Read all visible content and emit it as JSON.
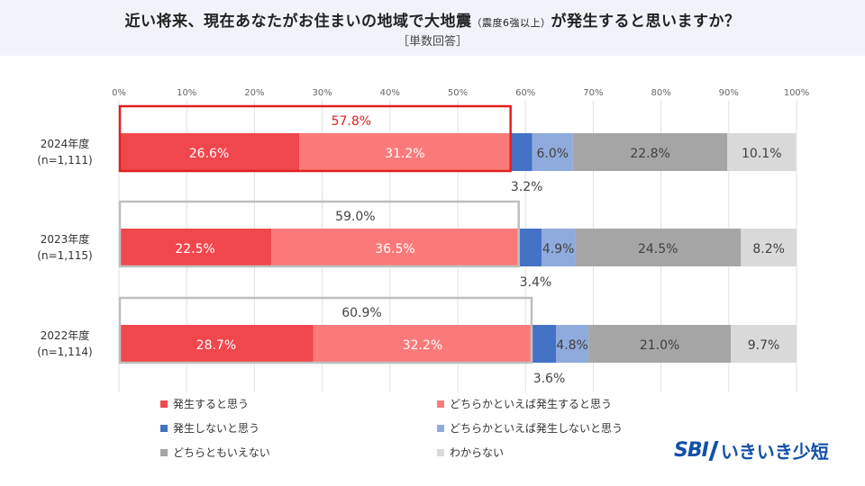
{
  "header": {
    "title_main": "近い将来、現在あなたがお住まいの地域で大地震",
    "title_small": "（震度6強以上）",
    "title_end": "が発生すると思いますか？",
    "subtitle": "［単数回答］"
  },
  "chart_data": {
    "type": "bar",
    "orientation": "horizontal",
    "stacked": true,
    "x_ticks": [
      "0%",
      "10%",
      "20%",
      "30%",
      "40%",
      "50%",
      "60%",
      "70%",
      "80%",
      "90%",
      "100%"
    ],
    "xlim": [
      0,
      100
    ],
    "grid": true,
    "categories": [
      {
        "label": "2024年度",
        "n": "(n=1,111)"
      },
      {
        "label": "2023年度",
        "n": "(n=1,115)"
      },
      {
        "label": "2022年度",
        "n": "(n=1,114)"
      }
    ],
    "series": [
      {
        "name": "発生すると思う",
        "color": "#f0474d",
        "values": [
          26.6,
          22.5,
          28.7
        ],
        "labels": [
          "26.6%",
          "22.5%",
          "28.7%"
        ]
      },
      {
        "name": "どちらかといえば発生すると思う",
        "color": "#fb7a79",
        "values": [
          31.2,
          36.5,
          32.2
        ],
        "labels": [
          "31.2%",
          "36.5%",
          "32.2%"
        ]
      },
      {
        "name": "発生しないと思う",
        "color": "#4472c4",
        "values": [
          3.2,
          3.4,
          3.6
        ],
        "labels": [
          "3.2%",
          "3.4%",
          "3.6%"
        ]
      },
      {
        "name": "どちらかといえば発生しないと思う",
        "color": "#8faadc",
        "values": [
          6.0,
          4.9,
          4.8
        ],
        "labels": [
          "6.0%",
          "4.9%",
          "4.8%"
        ]
      },
      {
        "name": "どちらともいえない",
        "color": "#a5a5a5",
        "values": [
          22.8,
          24.5,
          21.0
        ],
        "labels": [
          "22.8%",
          "24.5%",
          "21.0%"
        ]
      },
      {
        "name": "わからない",
        "color": "#d9d9d9",
        "values": [
          10.1,
          8.2,
          9.7
        ],
        "labels": [
          "10.1%",
          "8.2%",
          "9.7%"
        ]
      }
    ],
    "totals": {
      "values": [
        57.8,
        59.0,
        60.9
      ],
      "labels": [
        "57.8%",
        "59.0%",
        "60.9%"
      ],
      "box_colors": [
        "#e02020",
        "#bfbfbf",
        "#bfbfbf"
      ]
    },
    "legend": "bottom"
  },
  "logo": {
    "brand": "SBI",
    "name": "いきいき少短",
    "color": "#1450a8"
  }
}
